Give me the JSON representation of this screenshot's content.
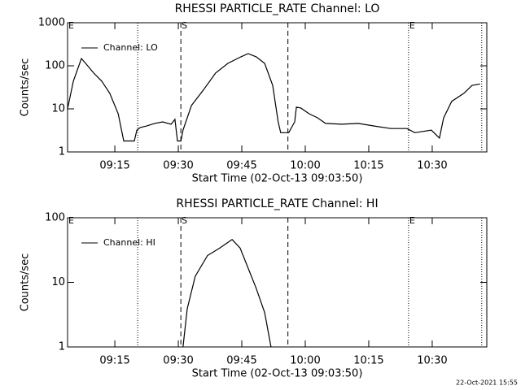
{
  "timestamp": "22-Oct-2021 15:55",
  "chart_data": [
    {
      "type": "line",
      "title": "RHESSI PARTICLE_RATE Channel: LO",
      "ylabel": "Counts/sec",
      "xlabel": "Start Time (02-Oct-13 09:03:50)",
      "log_y": true,
      "legend": "upper left",
      "xlim": [
        543.83,
        642.9
      ],
      "ylim": [
        1,
        1000
      ],
      "xticks": [
        {
          "value": 555,
          "label": "09:15"
        },
        {
          "value": 570,
          "label": "09:30"
        },
        {
          "value": 585,
          "label": "09:45"
        },
        {
          "value": 600,
          "label": "10:00"
        },
        {
          "value": 615,
          "label": "10:15"
        },
        {
          "value": 630,
          "label": "10:30"
        }
      ],
      "yticks": [
        1,
        10,
        100,
        1000
      ],
      "events": [
        {
          "x": 543.83,
          "label": "E",
          "style": "dotted"
        },
        {
          "x": 560.4,
          "style": "dotted"
        },
        {
          "x": 570.6,
          "label": "S",
          "style": "dashed"
        },
        {
          "x": 595.9,
          "style": "dashed"
        },
        {
          "x": 624.4,
          "label": "E",
          "style": "dotted"
        },
        {
          "x": 641.7,
          "style": "dotted"
        }
      ],
      "series": [
        {
          "name": "Channel: LO",
          "color": "#000000",
          "x": [
            543.8,
            545.2,
            547.1,
            548.1,
            550.0,
            551.9,
            553.8,
            555.8,
            557.1,
            559.6,
            560.2,
            561.0,
            562.5,
            564.4,
            566.3,
            568.3,
            569.2,
            569.8,
            570.6,
            571.1,
            573.1,
            576.0,
            578.8,
            581.7,
            584.8,
            586.5,
            588.4,
            590.4,
            592.3,
            593.6,
            594.2,
            596.1,
            597.5,
            597.9,
            599.0,
            600.9,
            602.9,
            604.8,
            608.6,
            612.5,
            616.3,
            620.2,
            624.0,
            625.9,
            629.8,
            631.7,
            632.7,
            634.6,
            637.5,
            639.4,
            641.3
          ],
          "values": [
            9.6,
            44,
            148,
            114,
            68,
            44,
            23,
            7.7,
            1.8,
            1.8,
            3.2,
            3.7,
            4.0,
            4.6,
            5.0,
            4.4,
            5.7,
            1.8,
            1.8,
            3.2,
            12,
            28,
            68,
            114,
            162,
            192,
            162,
            114,
            35,
            5.0,
            2.8,
            2.8,
            5.0,
            11,
            10.4,
            7.7,
            6.2,
            4.6,
            4.4,
            4.6,
            4.0,
            3.5,
            3.5,
            2.8,
            3.2,
            2.1,
            6.2,
            15,
            23,
            35,
            38
          ]
        }
      ]
    },
    {
      "type": "line",
      "title": "RHESSI PARTICLE_RATE Channel: HI",
      "ylabel": "Counts/sec",
      "xlabel": "Start Time (02-Oct-13 09:03:50)",
      "log_y": true,
      "legend": "upper left",
      "xlim": [
        543.83,
        642.9
      ],
      "ylim": [
        1,
        100
      ],
      "xticks": [
        {
          "value": 555,
          "label": "09:15"
        },
        {
          "value": 570,
          "label": "09:30"
        },
        {
          "value": 585,
          "label": "09:45"
        },
        {
          "value": 600,
          "label": "10:00"
        },
        {
          "value": 615,
          "label": "10:15"
        },
        {
          "value": 630,
          "label": "10:30"
        }
      ],
      "yticks": [
        1,
        10,
        100
      ],
      "events": [
        {
          "x": 543.83,
          "label": "E",
          "style": "dotted"
        },
        {
          "x": 560.4,
          "style": "dotted"
        },
        {
          "x": 570.6,
          "label": "S",
          "style": "dashed"
        },
        {
          "x": 595.9,
          "style": "dashed"
        },
        {
          "x": 624.4,
          "label": "E",
          "style": "dotted"
        },
        {
          "x": 641.7,
          "style": "dotted"
        }
      ],
      "series": [
        {
          "name": "Channel: HI",
          "color": "#000000",
          "x": [
            571.1,
            572.1,
            574.0,
            576.9,
            579.8,
            582.7,
            584.6,
            586.5,
            588.4,
            590.4,
            591.9
          ],
          "values": [
            1,
            3.9,
            12.4,
            26,
            34,
            46,
            34,
            16.6,
            8.1,
            3.4,
            1
          ]
        }
      ]
    }
  ]
}
